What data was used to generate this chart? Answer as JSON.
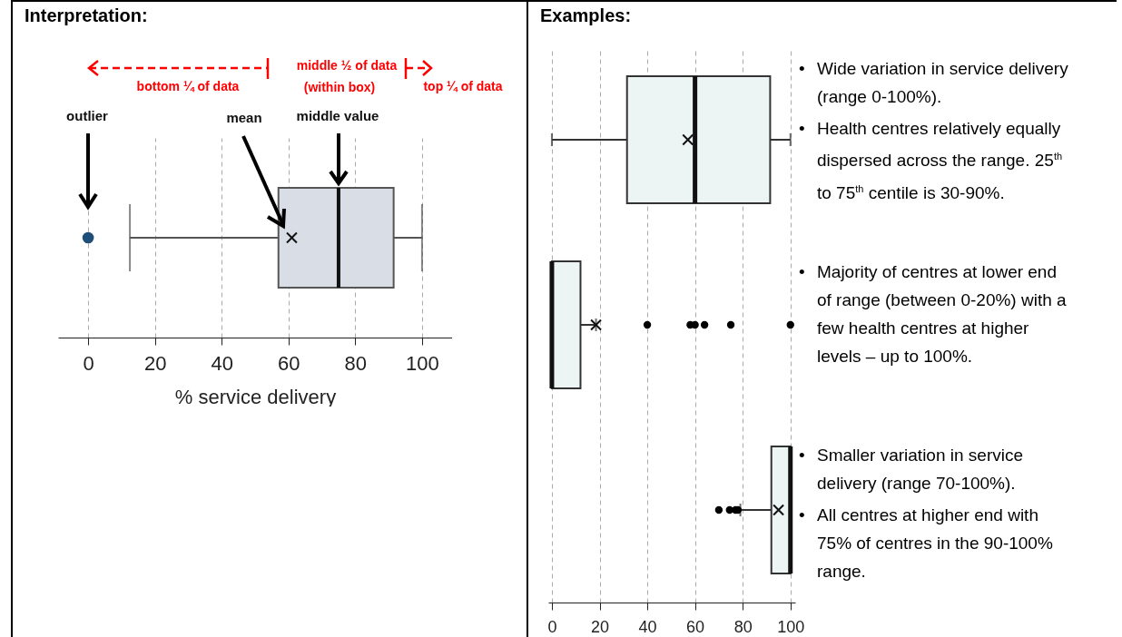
{
  "chart_data": [
    {
      "type": "box",
      "title": "Interpretation:",
      "xlabel": "% service delivery",
      "orientation": "horizontal",
      "categories": [
        null
      ],
      "series": [
        {
          "color": "#d9dee6",
          "boxes": [
            {
              "low": 12.5,
              "q1": 57,
              "median": 75,
              "q3": 91.5,
              "high": 100,
              "mean": 61,
              "outliers": [
                0
              ]
            }
          ]
        }
      ],
      "xlim": [
        -9,
        109
      ],
      "xticks": [
        0,
        20,
        40,
        60,
        80,
        100
      ],
      "grid": "x",
      "tick_labels": "x",
      "annotations": [
        "bottom ¼ of data",
        "middle ½ of data",
        "(within box)",
        "top ¼ of data",
        "outlier",
        "mean",
        "middle value"
      ]
    },
    {
      "type": "box",
      "title": "Examples:",
      "orientation": "horizontal",
      "categories": [
        null,
        null,
        null
      ],
      "series": [
        {
          "color": "#edf4f4",
          "boxes": [
            {
              "low": 0,
              "q1": 31.5,
              "median": 60,
              "q3": 91.5,
              "high": 100,
              "mean": 57
            },
            {
              "low": 0,
              "q1": 0,
              "median": 0,
              "q3": 12,
              "high": 18.5,
              "mean": 18.5,
              "outliers": [
                40,
                58,
                60,
                64,
                75,
                100
              ]
            },
            {
              "low": 79,
              "q1": 92,
              "median": 100,
              "q3": 100,
              "high": 100,
              "mean": 95,
              "outliers": [
                70,
                74.5,
                77,
                78
              ]
            }
          ]
        }
      ],
      "xlim": [
        -1.5,
        102
      ],
      "xticks": [
        0,
        20,
        40,
        60,
        80,
        100
      ],
      "grid": "x",
      "tick_labels": "x",
      "annotations": [
        "• Wide variation in service delivery (range 0-100%).",
        "• Health centres relatively equally dispersed across the range. 25$^{th}$ to 75$^{th}$ centile is 30-90%.",
        "• Majority of centres at lower end of range (between 0-20%) with a few health centres at higher levels – up to 100%.",
        "• Smaller variation in service delivery (range 70-100%).",
        "• All centres at higher end with 75% of centres in the 90-100% range."
      ]
    }
  ]
}
